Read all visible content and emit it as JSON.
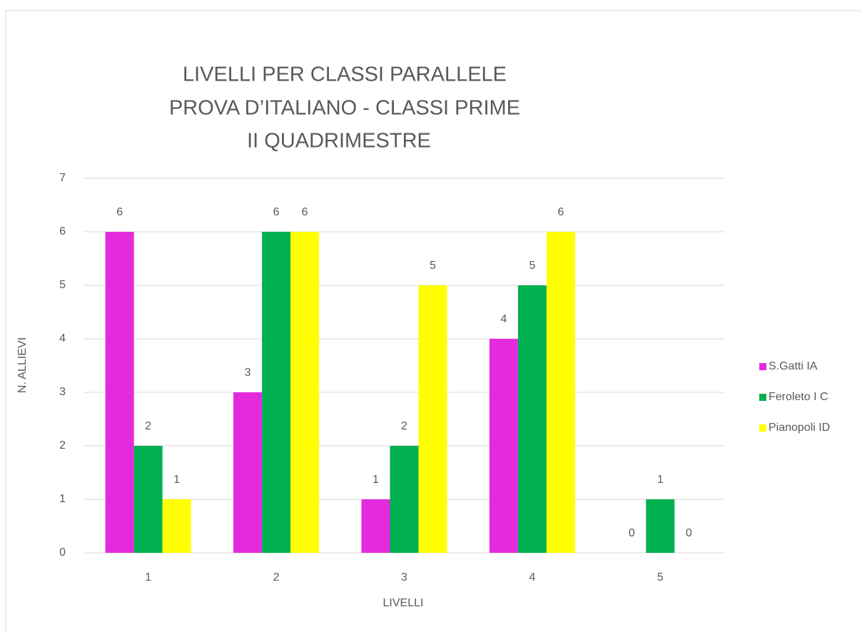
{
  "chart_data": {
    "type": "bar",
    "title": [
      "LIVELLI PER CLASSI PARALLELE",
      "PROVA D’ITALIANO - CLASSI PRIME",
      "II QUADRIMESTRE"
    ],
    "x_label": "LIVELLI",
    "y_label": "N. ALLIEVI",
    "categories": [
      "1",
      "2",
      "3",
      "4",
      "5"
    ],
    "series": [
      {
        "name": "S.Gatti IA",
        "color": "#e32add",
        "values": [
          6,
          3,
          1,
          4,
          0
        ]
      },
      {
        "name": "Feroleto I C",
        "color": "#00b050",
        "values": [
          2,
          6,
          2,
          5,
          1
        ]
      },
      {
        "name": "Pianopoli ID",
        "color": "#ffff00",
        "values": [
          1,
          6,
          5,
          6,
          0
        ]
      }
    ],
    "ylim": [
      0,
      7
    ],
    "yticks": [
      0,
      1,
      2,
      3,
      4,
      5,
      6,
      7
    ],
    "grid": true,
    "legend": "right"
  }
}
